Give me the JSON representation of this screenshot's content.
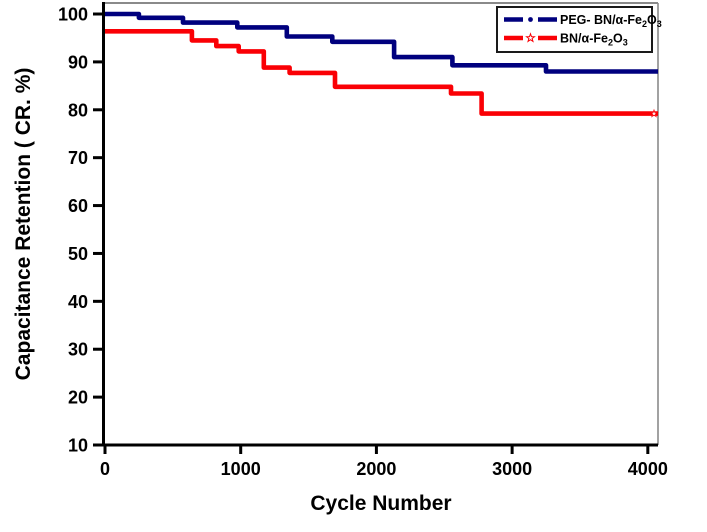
{
  "chart_data": {
    "type": "line",
    "step_mode": "post",
    "title": "",
    "xlabel": "Cycle Number",
    "ylabel": "Capacitance Retention ( CR. %)",
    "xlim": [
      0,
      4075
    ],
    "ylim": [
      10,
      102.3
    ],
    "x_ticks": [
      0,
      1000,
      2000,
      3000,
      4000
    ],
    "y_ticks": [
      10,
      20,
      30,
      40,
      50,
      60,
      70,
      80,
      90,
      100
    ],
    "grid": false,
    "legend_position": "top-right",
    "axis_color": "#000000",
    "frame_color": "#8a8a8a",
    "series": [
      {
        "name": "PEG- BN/α-Fe2O3",
        "label_parts": [
          {
            "text": "PEG- BN/α-Fe",
            "sub": false
          },
          {
            "text": "2",
            "sub": true
          },
          {
            "text": "O",
            "sub": false
          },
          {
            "text": "3",
            "sub": true
          }
        ],
        "color": "#00007E",
        "legend_marker": "dot",
        "end_marker": false,
        "points": [
          [
            0,
            100
          ],
          [
            250,
            99.2
          ],
          [
            575,
            98.2
          ],
          [
            975,
            97.2
          ],
          [
            1340,
            95.3
          ],
          [
            1675,
            94.2
          ],
          [
            2130,
            91.0
          ],
          [
            2560,
            89.3
          ],
          [
            3250,
            88.0
          ]
        ],
        "end_x": 4075,
        "final_value_pct": 88
      },
      {
        "name": "BN/α-Fe2O3",
        "label_parts": [
          {
            "text": "BN/α-Fe",
            "sub": false
          },
          {
            "text": "2",
            "sub": true
          },
          {
            "text": "O",
            "sub": false
          },
          {
            "text": "3",
            "sub": true
          }
        ],
        "color": "#FA0005",
        "legend_marker": "star",
        "end_marker": true,
        "points": [
          [
            0,
            96.4
          ],
          [
            640,
            94.5
          ],
          [
            820,
            93.3
          ],
          [
            985,
            92.2
          ],
          [
            1170,
            88.8
          ],
          [
            1360,
            87.7
          ],
          [
            1695,
            84.8
          ],
          [
            2550,
            83.4
          ],
          [
            2775,
            79.2
          ]
        ],
        "end_x": 4075,
        "final_value_pct": 79
      }
    ]
  }
}
